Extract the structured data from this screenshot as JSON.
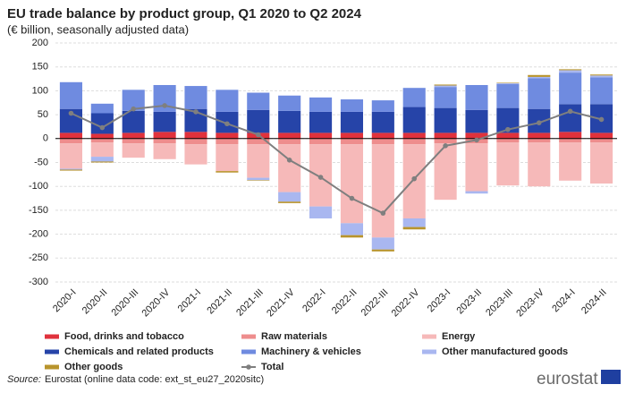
{
  "chart_data": {
    "type": "stacked_bar_line",
    "title": "EU trade balance by product group, Q1 2020 to Q2 2024",
    "subtitle": "(€ billion, seasonally adjusted data)",
    "categories": [
      "2020-I",
      "2020-II",
      "2020-III",
      "2020-IV",
      "2021-I",
      "2021-II",
      "2021-III",
      "2021-IV",
      "2022-I",
      "2022-II",
      "2022-III",
      "2022-IV",
      "2023-I",
      "2023-II",
      "2023-III",
      "2023-IV",
      "2024-I",
      "2024-II"
    ],
    "series": [
      {
        "name": "Food, drinks and tobacco",
        "color": "#e0323c",
        "values": [
          12,
          10,
          12,
          14,
          14,
          12,
          12,
          12,
          12,
          12,
          12,
          12,
          12,
          12,
          12,
          12,
          14,
          12
        ]
      },
      {
        "name": "Raw materials",
        "color": "#ee8d8d",
        "values": [
          -10,
          -8,
          -10,
          -10,
          -12,
          -12,
          -12,
          -12,
          -12,
          -12,
          -12,
          -12,
          -10,
          -10,
          -8,
          -8,
          -8,
          -8
        ]
      },
      {
        "name": "Energy",
        "color": "#f6b9b9",
        "values": [
          -53,
          -30,
          -30,
          -33,
          -42,
          -56,
          -70,
          -100,
          -130,
          -165,
          -195,
          -155,
          -118,
          -100,
          -90,
          -92,
          -80,
          -86
        ]
      },
      {
        "name": "Chemicals and related products",
        "color": "#2644a8",
        "values": [
          50,
          43,
          46,
          42,
          48,
          44,
          48,
          46,
          44,
          44,
          44,
          54,
          52,
          48,
          52,
          50,
          58,
          60
        ]
      },
      {
        "name": "Machinery & vehicles",
        "color": "#6f8be0",
        "values": [
          56,
          20,
          44,
          56,
          48,
          46,
          36,
          32,
          30,
          26,
          24,
          40,
          44,
          52,
          50,
          64,
          66,
          56
        ]
      },
      {
        "name": "Other manufactured goods",
        "color": "#a9b7f0",
        "values": [
          -2,
          -10,
          0,
          0,
          0,
          0,
          -5,
          -20,
          -25,
          -25,
          -25,
          -18,
          3,
          -5,
          2,
          3,
          5,
          4
        ]
      },
      {
        "name": "Other goods",
        "color": "#b8942c",
        "values": [
          -2,
          -2,
          0,
          0,
          0,
          -3,
          -1,
          -3,
          0,
          -5,
          -4,
          -5,
          2,
          0,
          1,
          4,
          2,
          2
        ]
      }
    ],
    "line_series": {
      "name": "Total",
      "color": "#7f7f7f",
      "values": [
        53,
        23,
        62,
        69,
        56,
        31,
        8,
        -45,
        -81,
        -125,
        -156,
        -84,
        -15,
        -3,
        19,
        33,
        57,
        40
      ]
    },
    "ylim": [
      -300,
      200
    ],
    "yticks": [
      -300,
      -250,
      -200,
      -150,
      -100,
      -50,
      0,
      50,
      100,
      150,
      200
    ],
    "grid": true,
    "source_label": "Source:",
    "source": "Eurostat (online data code: ext_st_eu27_2020sitc)",
    "logo": "eurostat"
  }
}
